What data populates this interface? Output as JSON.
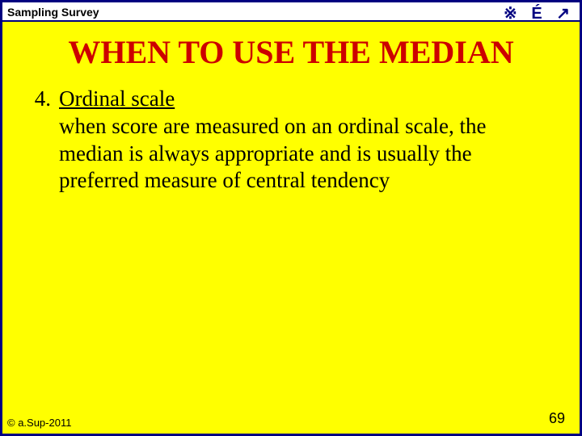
{
  "colors": {
    "slide_bg": "#ffff00",
    "border": "#000080",
    "header_bg": "#ffffff",
    "header_text": "#000000",
    "title_text": "#cc0000",
    "body_text": "#000000",
    "icon_text": "#000080",
    "footer_text": "#000000",
    "page_num_text": "#000000"
  },
  "header": {
    "label": "Sampling Survey",
    "icons": "※ É ↗"
  },
  "title": "WHEN TO USE THE MEDIAN",
  "list": {
    "number": "4.",
    "heading": "Ordinal scale",
    "body": "when score are measured on an ordinal scale, the median is always appropriate and is usually the preferred measure of central tendency"
  },
  "footer": {
    "copyright": "© a.Sup-2011",
    "page": "69"
  }
}
